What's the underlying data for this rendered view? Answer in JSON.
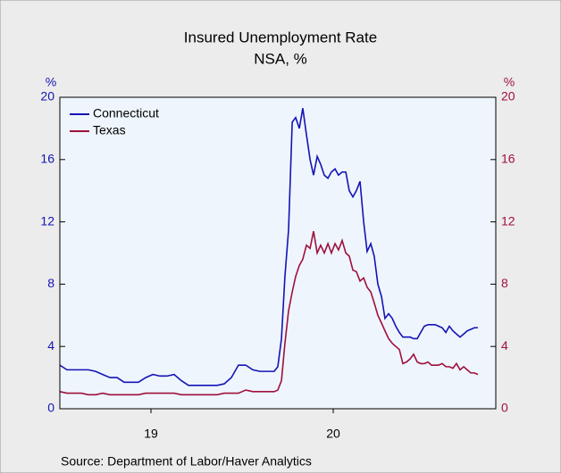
{
  "chart_data": {
    "type": "line",
    "title": "Insured Unemployment Rate",
    "subtitle": "NSA, %",
    "y_label": "%",
    "y2_label": "%",
    "source": "Source:  Department of Labor/Haver Analytics",
    "x": [
      2019.0,
      2019.039,
      2019.078,
      2019.118,
      2019.157,
      2019.196,
      2019.235,
      2019.275,
      2019.314,
      2019.353,
      2019.392,
      2019.431,
      2019.471,
      2019.51,
      2019.549,
      2019.588,
      2019.627,
      2019.667,
      2019.706,
      2019.745,
      2019.784,
      2019.824,
      2019.863,
      2019.902,
      2019.941,
      2019.98,
      2020.02,
      2020.059,
      2020.098,
      2020.137,
      2020.176,
      2020.196,
      2020.216,
      2020.235,
      2020.255,
      2020.275,
      2020.294,
      2020.314,
      2020.333,
      2020.353,
      2020.373,
      2020.392,
      2020.412,
      2020.431,
      2020.451,
      2020.471,
      2020.49,
      2020.51,
      2020.529,
      2020.549,
      2020.569,
      2020.588,
      2020.608,
      2020.627,
      2020.647,
      2020.667,
      2020.686,
      2020.706,
      2020.725,
      2020.745,
      2020.765,
      2020.784,
      2020.804,
      2020.824,
      2020.843,
      2020.863,
      2020.882,
      2020.902,
      2020.922,
      2020.941,
      2020.961,
      2020.98,
      2021.0,
      2021.02,
      2021.039,
      2021.059,
      2021.078,
      2021.098,
      2021.118,
      2021.137,
      2021.157,
      2021.176,
      2021.196,
      2021.216,
      2021.235,
      2021.255,
      2021.275,
      2021.294
    ],
    "series": [
      {
        "name": "Connecticut",
        "color": "#1414b4",
        "values": [
          2.8,
          2.5,
          2.5,
          2.5,
          2.5,
          2.4,
          2.2,
          2.0,
          2.0,
          1.7,
          1.7,
          1.7,
          2.0,
          2.2,
          2.1,
          2.1,
          2.2,
          1.8,
          1.5,
          1.5,
          1.5,
          1.5,
          1.5,
          1.6,
          2.0,
          2.8,
          2.8,
          2.5,
          2.4,
          2.4,
          2.4,
          2.7,
          4.5,
          8.5,
          11.5,
          18.4,
          18.7,
          18.0,
          19.3,
          17.6,
          16.0,
          15.0,
          16.2,
          15.7,
          15.0,
          14.8,
          15.2,
          15.4,
          15.0,
          15.2,
          15.2,
          14.0,
          13.6,
          14.0,
          14.6,
          12.0,
          10.1,
          10.6,
          9.8,
          8.0,
          7.2,
          5.8,
          6.1,
          5.8,
          5.3,
          4.9,
          4.6,
          4.6,
          4.6,
          4.5,
          4.5,
          4.9,
          5.3,
          5.4,
          5.4,
          5.4,
          5.3,
          5.2,
          4.9,
          5.3,
          5.0,
          4.8,
          4.6,
          4.8,
          5.0,
          5.1,
          5.2,
          5.2
        ]
      },
      {
        "name": "Texas",
        "color": "#a0103c",
        "axis": "y2",
        "values": [
          1.1,
          1.0,
          1.0,
          1.0,
          0.9,
          0.9,
          1.0,
          0.9,
          0.9,
          0.9,
          0.9,
          0.9,
          1.0,
          1.0,
          1.0,
          1.0,
          1.0,
          0.9,
          0.9,
          0.9,
          0.9,
          0.9,
          0.9,
          1.0,
          1.0,
          1.0,
          1.2,
          1.1,
          1.1,
          1.1,
          1.1,
          1.2,
          1.8,
          4.2,
          6.3,
          7.5,
          8.5,
          9.2,
          9.6,
          10.5,
          10.3,
          11.4,
          10.0,
          10.5,
          10.0,
          10.6,
          10.0,
          10.6,
          10.2,
          10.8,
          10.0,
          9.8,
          8.9,
          8.8,
          8.2,
          8.4,
          7.8,
          7.5,
          6.8,
          6.0,
          5.5,
          5.0,
          4.5,
          4.2,
          4.0,
          3.8,
          2.9,
          3.0,
          3.2,
          3.5,
          3.0,
          2.9,
          2.9,
          3.0,
          2.8,
          2.8,
          2.8,
          2.9,
          2.7,
          2.7,
          2.6,
          2.9,
          2.5,
          2.7,
          2.5,
          2.3,
          2.3,
          2.2
        ]
      }
    ],
    "xlim": [
      2019.0,
      2021.392
    ],
    "xticks": [
      {
        "value": 2019.5,
        "label": "19"
      },
      {
        "value": 2020.5,
        "label": "20"
      }
    ],
    "ylim": [
      0,
      20
    ],
    "yticks": [
      0,
      4,
      8,
      12,
      16,
      20
    ],
    "y2lim": [
      0,
      20
    ],
    "y2ticks": [
      0,
      4,
      8,
      12,
      16,
      20
    ],
    "legend": "upper left"
  }
}
